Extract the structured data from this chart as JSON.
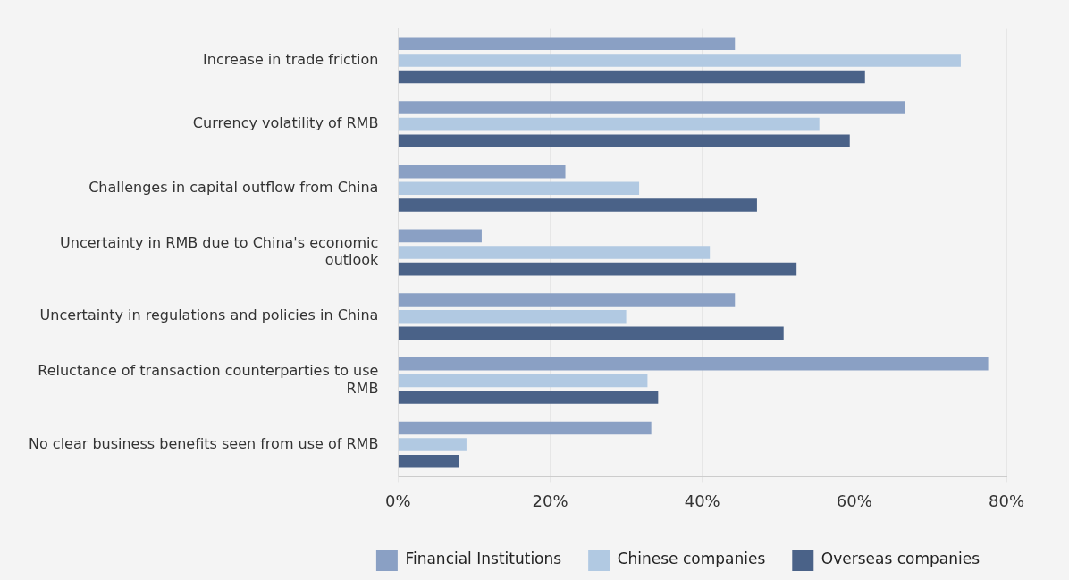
{
  "chart_data": {
    "type": "bar",
    "orientation": "horizontal",
    "categories": [
      "Increase in trade friction",
      "Currency volatility of RMB",
      "Challenges in capital outflow from China",
      "Uncertainty in RMB due to China's economic outlook",
      "Uncertainty in regulations and policies in China",
      "Reluctance of transaction counterparties to use RMB",
      "No clear business benefits seen from use of RMB"
    ],
    "series": [
      {
        "name": "Financial Institutions",
        "color": "#8aa0c4",
        "values": [
          44.3,
          66.6,
          22,
          11,
          44.3,
          77.6,
          33.3
        ]
      },
      {
        "name": "Chinese companies",
        "color": "#b1c9e2",
        "values": [
          74,
          55.4,
          31.7,
          41,
          30,
          32.8,
          9
        ]
      },
      {
        "name": "Overseas companies",
        "color": "#4a6288",
        "values": [
          61.4,
          59.4,
          47.2,
          52.4,
          50.7,
          34.2,
          8
        ]
      }
    ],
    "xlim": [
      0,
      80
    ],
    "xticks": [
      {
        "value": 0,
        "label": "0%"
      },
      {
        "value": 20,
        "label": "20%"
      },
      {
        "value": 40,
        "label": "40%"
      },
      {
        "value": 60,
        "label": "60%"
      },
      {
        "value": 80,
        "label": "80%"
      }
    ],
    "grid": "x",
    "legend": "bottom right"
  }
}
